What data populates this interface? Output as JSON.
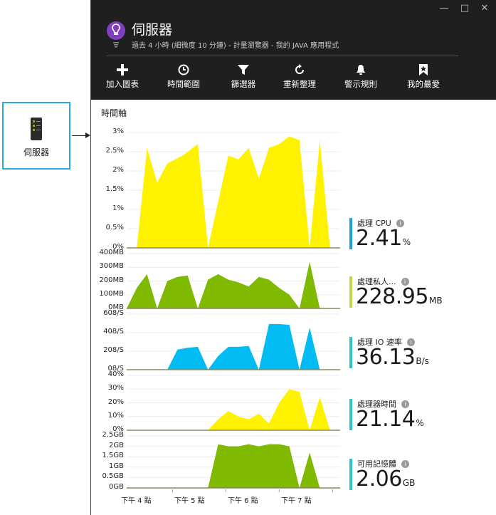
{
  "tile": {
    "label": "伺服器",
    "icon": "server-icon"
  },
  "window": {
    "minimize": "—",
    "maximize": "□",
    "close": "✕"
  },
  "header": {
    "icon": "lightbulb-icon",
    "title": "伺服器",
    "subtitle": "過去 4 小時 (細微度 10 分鐘) - 計量瀏覽器 - 我的 JAVA 應用程式"
  },
  "toolbar": [
    {
      "label": "加入圖表",
      "icon": "plus-icon"
    },
    {
      "label": "時間範圍",
      "icon": "clock-icon"
    },
    {
      "label": "篩選器",
      "icon": "filter-icon"
    },
    {
      "label": "重新整理",
      "icon": "refresh-icon"
    },
    {
      "label": "警示規則",
      "icon": "bell-icon"
    },
    {
      "label": "我的最愛",
      "icon": "bookmark-icon"
    }
  ],
  "section_title": "時間軸",
  "colors": {
    "yellow": "#fff200",
    "green": "#7fba00",
    "blue": "#00bcf2",
    "baseline": "#8a8a5a"
  },
  "metrics": [
    {
      "name": "處理 CPU",
      "value": "2.41",
      "unit": "%",
      "color": "#1ba1e2"
    },
    {
      "name": "處理私人...",
      "value": "228.95",
      "unit": "MB",
      "color": "#c3d94a"
    },
    {
      "name": "處理 IO 速率",
      "value": "36.13",
      "unit": "B/s",
      "color": "#2ec4c4"
    },
    {
      "name": "處理器時間",
      "value": "21.14",
      "unit": "%",
      "color": "#2ec4c4"
    },
    {
      "name": "可用記憶體",
      "value": "2.06",
      "unit": "GB",
      "color": "#2ec4c4"
    }
  ],
  "chart_data": [
    {
      "type": "area",
      "title": "處理 CPU",
      "color": "#fff200",
      "yticks": [
        "3%",
        "2.5%",
        "2%",
        "1.5%",
        "1%",
        "0.5%",
        "0%"
      ],
      "ylim": [
        0,
        3
      ],
      "x": [
        0,
        2,
        4,
        6,
        8,
        11,
        14,
        16,
        18,
        20,
        22,
        24,
        26,
        28,
        30,
        32,
        34,
        36,
        38,
        40,
        42
      ],
      "values": [
        0,
        0,
        2.6,
        1.7,
        2.2,
        2.4,
        2.7,
        0,
        1.2,
        2.4,
        2.3,
        2.6,
        1.8,
        2.6,
        2.7,
        2.9,
        2.8,
        0,
        2.8,
        0,
        0
      ],
      "xticks": [
        "下午 4 點",
        "下午 5 點",
        "下午 6 點",
        "下午 7 點"
      ]
    },
    {
      "type": "area",
      "title": "處理私人位元組",
      "color": "#7fba00",
      "yticks": [
        "400MB",
        "300MB",
        "200MB",
        "100MB",
        "0MB"
      ],
      "ylim": [
        0,
        400
      ],
      "x": [
        0,
        2,
        4,
        6,
        8,
        10,
        12,
        14,
        16,
        18,
        20,
        22,
        24,
        26,
        28,
        30,
        32,
        34,
        36,
        38,
        40,
        42
      ],
      "values": [
        0,
        150,
        250,
        0,
        200,
        230,
        240,
        0,
        210,
        250,
        210,
        190,
        160,
        230,
        210,
        150,
        100,
        0,
        340,
        0,
        0,
        0
      ]
    },
    {
      "type": "area",
      "title": "處理 IO 速率",
      "color": "#00bcf2",
      "yticks": [
        "608/S",
        "408/S",
        "208/S",
        "08/S"
      ],
      "ylim": [
        0,
        608
      ],
      "x": [
        0,
        2,
        4,
        6,
        8,
        10,
        12,
        14,
        16,
        18,
        20,
        22,
        24,
        26,
        28,
        30,
        32,
        34,
        36,
        38,
        40,
        42
      ],
      "values": [
        0,
        0,
        0,
        0,
        0,
        220,
        240,
        250,
        0,
        150,
        250,
        250,
        260,
        0,
        500,
        500,
        490,
        0,
        460,
        0,
        0,
        0
      ]
    },
    {
      "type": "area",
      "title": "處理器時間",
      "color": "#fff200",
      "yticks": [
        "40%",
        "30%",
        "20%",
        "10%",
        "0%"
      ],
      "ylim": [
        0,
        40
      ],
      "x": [
        0,
        2,
        4,
        6,
        8,
        10,
        12,
        14,
        16,
        18,
        20,
        22,
        24,
        26,
        28,
        30,
        32,
        34,
        36,
        38,
        40,
        42
      ],
      "values": [
        0,
        0,
        0,
        0,
        0,
        0,
        0,
        0,
        0,
        8,
        14,
        10,
        8,
        12,
        5,
        20,
        30,
        28,
        0,
        24,
        0,
        0
      ]
    },
    {
      "type": "area",
      "title": "可用記憶體",
      "color": "#7fba00",
      "yticks": [
        "2.5GB",
        "2GB",
        "1.5GB",
        "1GB",
        "0.5GB",
        "0GB"
      ],
      "ylim": [
        0,
        2.5
      ],
      "x": [
        0,
        2,
        4,
        6,
        8,
        10,
        12,
        14,
        16,
        18,
        20,
        22,
        24,
        26,
        28,
        30,
        32,
        34,
        36,
        38,
        40,
        42
      ],
      "values": [
        0,
        0,
        0,
        0,
        0,
        0,
        0,
        0,
        0,
        2.1,
        2.0,
        2.0,
        2.1,
        2.0,
        2.1,
        2.1,
        2.0,
        0,
        1.7,
        0,
        0,
        0
      ]
    }
  ]
}
